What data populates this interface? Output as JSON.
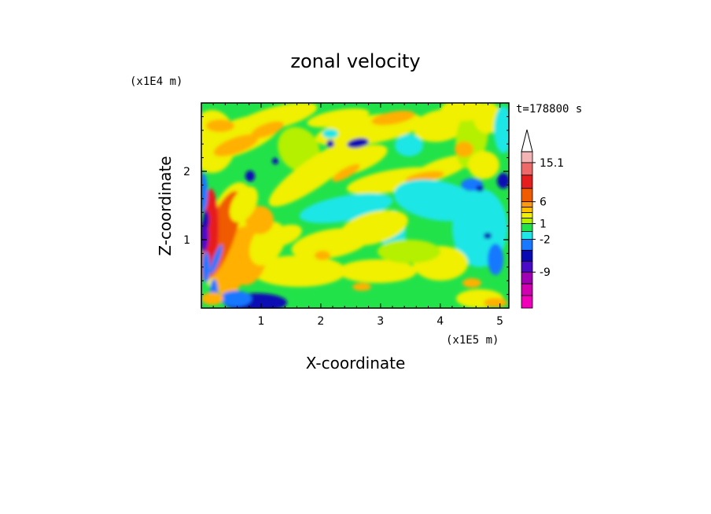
{
  "chart_data": {
    "type": "heatmap",
    "title": "zonal velocity",
    "xlabel": "X-coordinate",
    "ylabel": "Z-coordinate",
    "x_unit_label": "(x1E5 m)",
    "y_unit_label": "(x1E4 m)",
    "time_label": "t=178800 s",
    "xlim": [
      0,
      5.15
    ],
    "ylim": [
      0,
      3.0
    ],
    "x_ticks": [
      "1",
      "2",
      "3",
      "4",
      "5"
    ],
    "y_ticks": [
      "1",
      "2"
    ],
    "colorbar": {
      "orientation": "vertical",
      "extend": "max",
      "labels": [
        "15.1",
        "6",
        "1",
        "-2",
        "-9"
      ],
      "colors": [
        "#f3b4b4",
        "#ee6a6a",
        "#e61e1e",
        "#f05a00",
        "#ff9a10",
        "#ffc000",
        "#f0f000",
        "#b4f000",
        "#22e24a",
        "#1ee6e6",
        "#1878ff",
        "#0a0ab4",
        "#4a0ac8",
        "#a000b4",
        "#d000b0",
        "#f000b8"
      ]
    },
    "field_colors": {
      "dark_blue": "#0a0ab4",
      "blue": "#1878ff",
      "cyan": "#1ee6e6",
      "green": "#22e24a",
      "yellow_green": "#b4f000",
      "yellow": "#f0f000",
      "orange": "#ffb000",
      "dark_orange": "#f05a00",
      "red": "#e61e1e",
      "purple": "#4a0ac8"
    }
  }
}
